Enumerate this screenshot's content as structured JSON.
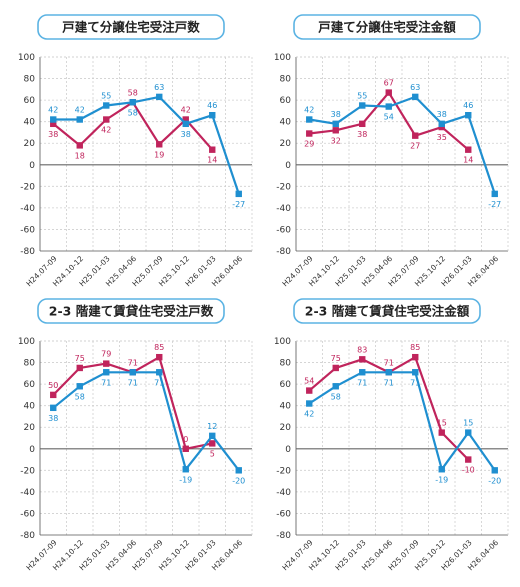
{
  "chart_data": [
    {
      "type": "line",
      "title": "戸建て分譲住宅受注戸数",
      "categories": [
        "H24.07-09",
        "H24.10-12",
        "H25.01-03",
        "H25.04-06",
        "H25.07-09",
        "H25.10-12",
        "H26.01-03",
        "H26.04-06"
      ],
      "ylim": [
        -80,
        100
      ],
      "yticks": [
        100,
        80,
        60,
        40,
        20,
        0,
        -20,
        -40,
        -60,
        -80
      ],
      "grid": true,
      "series": [
        {
          "color": "#1f8fd0",
          "values": [
            42,
            42,
            55,
            58,
            63,
            38,
            46,
            -27
          ],
          "labels": [
            "42",
            "42",
            "55",
            "58",
            "63",
            "38",
            "46",
            "-27"
          ]
        },
        {
          "color": "#c0245c",
          "values": [
            38,
            18,
            42,
            58,
            19,
            42,
            14,
            null
          ],
          "labels": [
            "38",
            "18",
            "42",
            "58",
            "19",
            "42",
            "14",
            ""
          ]
        }
      ]
    },
    {
      "type": "line",
      "title": "戸建て分譲住宅受注金額",
      "categories": [
        "H24.07-09",
        "H24.10-12",
        "H25.01-03",
        "H25.04-06",
        "H25.07-09",
        "H25.10-12",
        "H26.01-03",
        "H26.04-06"
      ],
      "ylim": [
        -80,
        100
      ],
      "yticks": [
        100,
        80,
        60,
        40,
        20,
        0,
        -20,
        -40,
        -60,
        -80
      ],
      "grid": true,
      "series": [
        {
          "color": "#1f8fd0",
          "values": [
            42,
            38,
            55,
            54,
            63,
            38,
            46,
            -27
          ],
          "labels": [
            "42",
            "38",
            "55",
            "54",
            "63",
            "38",
            "46",
            "-27"
          ]
        },
        {
          "color": "#c0245c",
          "values": [
            29,
            32,
            38,
            67,
            27,
            35,
            14,
            null
          ],
          "labels": [
            "29",
            "32",
            "38",
            "67",
            "27",
            "35",
            "14",
            ""
          ]
        }
      ]
    },
    {
      "type": "line",
      "title": "2-3 階建て賃貸住宅受注戸数",
      "categories": [
        "H24.07-09",
        "H24.10-12",
        "H25.01-03",
        "H25.04-06",
        "H25.07-09",
        "H25.10-12",
        "H26.01-03",
        "H26.04-06"
      ],
      "ylim": [
        -80,
        100
      ],
      "yticks": [
        100,
        80,
        60,
        40,
        20,
        0,
        -20,
        -40,
        -60,
        -80
      ],
      "grid": true,
      "series": [
        {
          "color": "#1f8fd0",
          "values": [
            38,
            58,
            71,
            71,
            71,
            -19,
            12,
            -20
          ],
          "labels": [
            "38",
            "58",
            "71",
            "71",
            "71",
            "-19",
            "12",
            "-20"
          ]
        },
        {
          "color": "#c0245c",
          "values": [
            50,
            75,
            79,
            71,
            85,
            0,
            5,
            null
          ],
          "labels": [
            "50",
            "75",
            "79",
            "71",
            "85",
            "0",
            "5",
            ""
          ]
        }
      ]
    },
    {
      "type": "line",
      "title": "2-3 階建て賃貸住宅受注金額",
      "categories": [
        "H24.07-09",
        "H24.10-12",
        "H25.01-03",
        "H25.04-06",
        "H25.07-09",
        "H25.10-12",
        "H26.01-03",
        "H26.04-06"
      ],
      "ylim": [
        -80,
        100
      ],
      "yticks": [
        100,
        80,
        60,
        40,
        20,
        0,
        -20,
        -40,
        -60,
        -80
      ],
      "grid": true,
      "series": [
        {
          "color": "#1f8fd0",
          "values": [
            42,
            58,
            71,
            71,
            71,
            -19,
            15,
            -20
          ],
          "labels": [
            "42",
            "58",
            "71",
            "71",
            "71",
            "-19",
            "15",
            "-20"
          ]
        },
        {
          "color": "#c0245c",
          "values": [
            54,
            75,
            83,
            71,
            85,
            15,
            -10,
            null
          ],
          "labels": [
            "54",
            "75",
            "83",
            "71",
            "85",
            "15",
            "-10",
            ""
          ]
        }
      ]
    }
  ]
}
